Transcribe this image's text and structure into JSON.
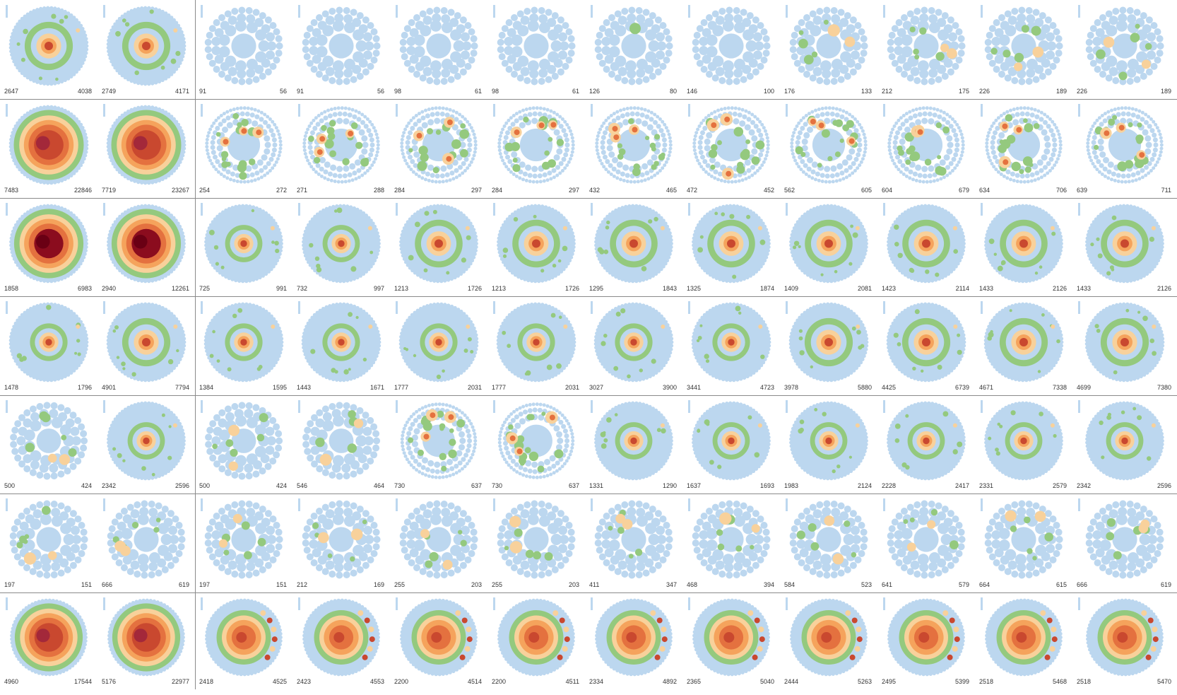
{
  "colors": {
    "background": "#ffffff",
    "blue": "#bcd7ef",
    "green": "#94c97e",
    "light_orange": "#f8d19b",
    "orange": "#f5a35c",
    "dark_orange": "#e4713f",
    "red": "#c9482f",
    "dark_red": "#8b0c1e",
    "separator": "#8a8a8a"
  },
  "rows": [
    [
      {
        "left": "2647",
        "right": "4038",
        "style": "ring"
      },
      {
        "left": "2749",
        "right": "4171",
        "style": "ring"
      },
      {
        "left": "91",
        "right": "56",
        "style": "blue"
      },
      {
        "left": "91",
        "right": "56",
        "style": "blue"
      },
      {
        "left": "98",
        "right": "61",
        "style": "blue"
      },
      {
        "left": "98",
        "right": "61",
        "style": "blue"
      },
      {
        "left": "126",
        "right": "80",
        "style": "blue-green"
      },
      {
        "left": "146",
        "right": "100",
        "style": "blue"
      },
      {
        "left": "176",
        "right": "133",
        "style": "sparse"
      },
      {
        "left": "212",
        "right": "175",
        "style": "sparse"
      },
      {
        "left": "226",
        "right": "189",
        "style": "sparse"
      },
      {
        "left": "226",
        "right": "189",
        "style": "sparse"
      }
    ],
    [
      {
        "left": "7483",
        "right": "22846",
        "style": "big"
      },
      {
        "left": "7719",
        "right": "23267",
        "style": "big"
      },
      {
        "left": "254",
        "right": "272",
        "style": "cluster"
      },
      {
        "left": "271",
        "right": "288",
        "style": "cluster"
      },
      {
        "left": "284",
        "right": "297",
        "style": "cluster"
      },
      {
        "left": "284",
        "right": "297",
        "style": "cluster"
      },
      {
        "left": "432",
        "right": "465",
        "style": "cluster"
      },
      {
        "left": "472",
        "right": "452",
        "style": "cluster"
      },
      {
        "left": "562",
        "right": "605",
        "style": "cluster"
      },
      {
        "left": "604",
        "right": "679",
        "style": "cluster"
      },
      {
        "left": "634",
        "right": "706",
        "style": "cluster"
      },
      {
        "left": "639",
        "right": "711",
        "style": "cluster"
      }
    ],
    [
      {
        "left": "1858",
        "right": "6983",
        "style": "bigdark"
      },
      {
        "left": "2940",
        "right": "12261",
        "style": "bigdark"
      },
      {
        "left": "725",
        "right": "991",
        "style": "ring-small"
      },
      {
        "left": "732",
        "right": "997",
        "style": "ring-small"
      },
      {
        "left": "1213",
        "right": "1726",
        "style": "ring"
      },
      {
        "left": "1213",
        "right": "1726",
        "style": "ring"
      },
      {
        "left": "1295",
        "right": "1843",
        "style": "ring"
      },
      {
        "left": "1325",
        "right": "1874",
        "style": "ring"
      },
      {
        "left": "1409",
        "right": "2081",
        "style": "ring"
      },
      {
        "left": "1423",
        "right": "2114",
        "style": "ring"
      },
      {
        "left": "1433",
        "right": "2126",
        "style": "ring"
      },
      {
        "left": "1433",
        "right": "2126",
        "style": "ring"
      }
    ],
    [
      {
        "left": "1478",
        "right": "1796",
        "style": "ring-small"
      },
      {
        "left": "4901",
        "right": "7794",
        "style": "ring"
      },
      {
        "left": "1384",
        "right": "1595",
        "style": "ring-small"
      },
      {
        "left": "1443",
        "right": "1671",
        "style": "ring-small"
      },
      {
        "left": "1777",
        "right": "2031",
        "style": "ring-small"
      },
      {
        "left": "1777",
        "right": "2031",
        "style": "ring-small"
      },
      {
        "left": "3027",
        "right": "3900",
        "style": "ring-small"
      },
      {
        "left": "3441",
        "right": "4723",
        "style": "ring-small"
      },
      {
        "left": "3978",
        "right": "5880",
        "style": "ring"
      },
      {
        "left": "4425",
        "right": "6739",
        "style": "ring"
      },
      {
        "left": "4671",
        "right": "7338",
        "style": "ring"
      },
      {
        "left": "4699",
        "right": "7380",
        "style": "ring"
      }
    ],
    [
      {
        "left": "500",
        "right": "424",
        "style": "sparse"
      },
      {
        "left": "2342",
        "right": "2596",
        "style": "ring-small"
      },
      {
        "left": "500",
        "right": "424",
        "style": "sparse"
      },
      {
        "left": "546",
        "right": "464",
        "style": "sparse"
      },
      {
        "left": "730",
        "right": "637",
        "style": "cluster"
      },
      {
        "left": "730",
        "right": "637",
        "style": "cluster"
      },
      {
        "left": "1331",
        "right": "1290",
        "style": "ring-small"
      },
      {
        "left": "1637",
        "right": "1693",
        "style": "ring-small"
      },
      {
        "left": "1983",
        "right": "2124",
        "style": "ring-small"
      },
      {
        "left": "2228",
        "right": "2417",
        "style": "ring-small"
      },
      {
        "left": "2331",
        "right": "2579",
        "style": "ring-small"
      },
      {
        "left": "2342",
        "right": "2596",
        "style": "ring-small"
      }
    ],
    [
      {
        "left": "197",
        "right": "151",
        "style": "sparse"
      },
      {
        "left": "666",
        "right": "619",
        "style": "sparse"
      },
      {
        "left": "197",
        "right": "151",
        "style": "sparse"
      },
      {
        "left": "212",
        "right": "169",
        "style": "sparse"
      },
      {
        "left": "255",
        "right": "203",
        "style": "sparse"
      },
      {
        "left": "255",
        "right": "203",
        "style": "sparse"
      },
      {
        "left": "411",
        "right": "347",
        "style": "sparse"
      },
      {
        "left": "468",
        "right": "394",
        "style": "sparse"
      },
      {
        "left": "584",
        "right": "523",
        "style": "sparse"
      },
      {
        "left": "641",
        "right": "579",
        "style": "sparse"
      },
      {
        "left": "664",
        "right": "615",
        "style": "sparse"
      },
      {
        "left": "666",
        "right": "619",
        "style": "sparse"
      }
    ],
    [
      {
        "left": "4960",
        "right": "17544",
        "style": "big"
      },
      {
        "left": "5176",
        "right": "22977",
        "style": "big"
      },
      {
        "left": "2418",
        "right": "4525",
        "style": "orange"
      },
      {
        "left": "2423",
        "right": "4553",
        "style": "orange"
      },
      {
        "left": "2200",
        "right": "4514",
        "style": "orange"
      },
      {
        "left": "2200",
        "right": "4511",
        "style": "orange"
      },
      {
        "left": "2334",
        "right": "4892",
        "style": "orange"
      },
      {
        "left": "2365",
        "right": "5040",
        "style": "orange"
      },
      {
        "left": "2444",
        "right": "5263",
        "style": "orange"
      },
      {
        "left": "2495",
        "right": "5399",
        "style": "orange"
      },
      {
        "left": "2518",
        "right": "5468",
        "style": "orange"
      },
      {
        "left": "2518",
        "right": "5470",
        "style": "orange"
      }
    ]
  ]
}
